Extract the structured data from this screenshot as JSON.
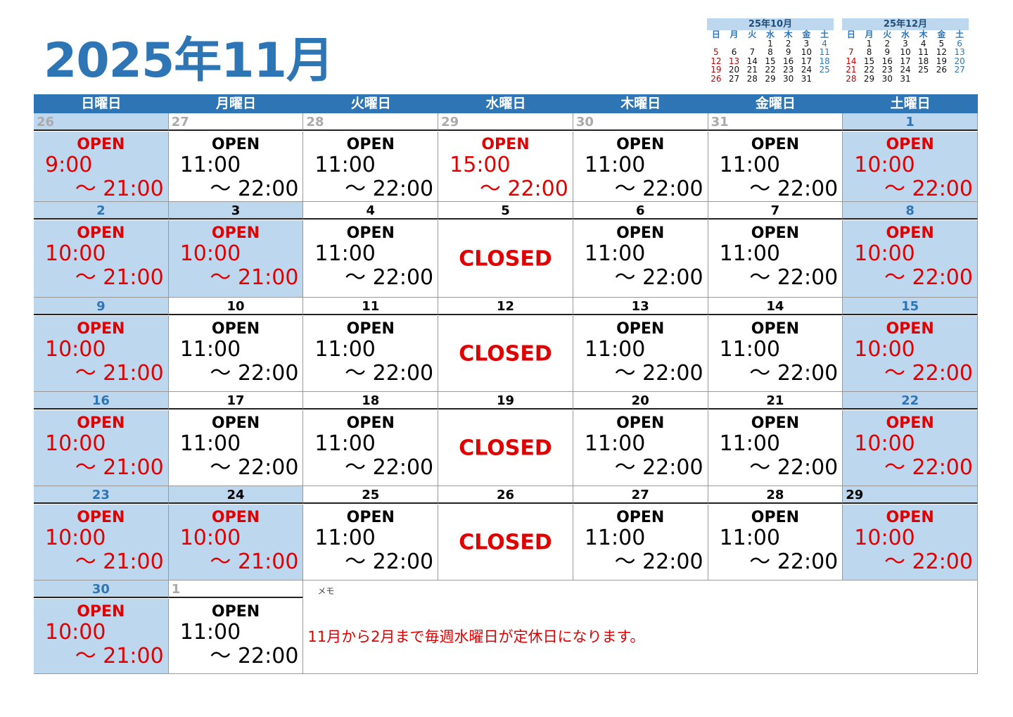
{
  "title": "2025年11月",
  "colors": {
    "accent": "#2e75b6",
    "light": "#bdd7ee",
    "red": "#e00000"
  },
  "mini_calendars": [
    {
      "title": "25年10月",
      "weekdays": [
        "日",
        "月",
        "火",
        "水",
        "木",
        "金",
        "土"
      ],
      "weeks": [
        [
          "",
          "",
          "",
          "1",
          "2",
          "3",
          "4"
        ],
        [
          "5",
          "6",
          "7",
          "8",
          "9",
          "10",
          "11"
        ],
        [
          "12",
          "13",
          "14",
          "15",
          "16",
          "17",
          "18"
        ],
        [
          "19",
          "20",
          "21",
          "22",
          "23",
          "24",
          "25"
        ],
        [
          "26",
          "27",
          "28",
          "29",
          "30",
          "31",
          ""
        ]
      ],
      "holidays": [
        "13"
      ]
    },
    {
      "title": "25年12月",
      "weekdays": [
        "日",
        "月",
        "火",
        "水",
        "木",
        "金",
        "土"
      ],
      "weeks": [
        [
          "",
          "1",
          "2",
          "3",
          "4",
          "5",
          "6"
        ],
        [
          "7",
          "8",
          "9",
          "10",
          "11",
          "12",
          "13"
        ],
        [
          "14",
          "15",
          "16",
          "17",
          "18",
          "19",
          "20"
        ],
        [
          "21",
          "22",
          "23",
          "24",
          "25",
          "26",
          "27"
        ],
        [
          "28",
          "29",
          "30",
          "31",
          "",
          "",
          ""
        ]
      ],
      "holidays": []
    }
  ],
  "weekdays": [
    "日曜日",
    "月曜日",
    "火曜日",
    "水曜日",
    "木曜日",
    "金曜日",
    "土曜日"
  ],
  "weeks": [
    [
      {
        "date": "26",
        "kind": "other",
        "blue": true,
        "status": "OPEN",
        "open": "9:00",
        "close": "～ 21:00",
        "red": true
      },
      {
        "date": "27",
        "kind": "other",
        "status": "OPEN",
        "open": "11:00",
        "close": "～ 22:00"
      },
      {
        "date": "28",
        "kind": "other",
        "status": "OPEN",
        "open": "11:00",
        "close": "～ 22:00"
      },
      {
        "date": "29",
        "kind": "other",
        "status": "OPEN",
        "open": "15:00",
        "close": "～ 22:00",
        "red": true
      },
      {
        "date": "30",
        "kind": "other",
        "status": "OPEN",
        "open": "11:00",
        "close": "～ 22:00"
      },
      {
        "date": "31",
        "kind": "other",
        "status": "OPEN",
        "open": "11:00",
        "close": "～ 22:00"
      },
      {
        "date": "1",
        "kind": "sat",
        "blue": true,
        "status": "OPEN",
        "open": "10:00",
        "close": "～ 22:00",
        "red": true
      }
    ],
    [
      {
        "date": "2",
        "kind": "sun",
        "blue": true,
        "status": "OPEN",
        "open": "10:00",
        "close": "～ 21:00",
        "red": true
      },
      {
        "date": "3",
        "kind": "hol",
        "blue": true,
        "status": "OPEN",
        "open": "10:00",
        "close": "～ 21:00",
        "red": true
      },
      {
        "date": "4",
        "kind": "wk",
        "status": "OPEN",
        "open": "11:00",
        "close": "～ 22:00"
      },
      {
        "date": "5",
        "kind": "wk",
        "status": "CLOSED"
      },
      {
        "date": "6",
        "kind": "wk",
        "status": "OPEN",
        "open": "11:00",
        "close": "～ 22:00"
      },
      {
        "date": "7",
        "kind": "wk",
        "status": "OPEN",
        "open": "11:00",
        "close": "～ 22:00"
      },
      {
        "date": "8",
        "kind": "sat",
        "blue": true,
        "status": "OPEN",
        "open": "10:00",
        "close": "～ 22:00",
        "red": true
      }
    ],
    [
      {
        "date": "9",
        "kind": "sun",
        "blue": true,
        "status": "OPEN",
        "open": "10:00",
        "close": "～ 21:00",
        "red": true
      },
      {
        "date": "10",
        "kind": "wk",
        "status": "OPEN",
        "open": "11:00",
        "close": "～ 22:00"
      },
      {
        "date": "11",
        "kind": "wk",
        "status": "OPEN",
        "open": "11:00",
        "close": "～ 22:00"
      },
      {
        "date": "12",
        "kind": "wk",
        "status": "CLOSED"
      },
      {
        "date": "13",
        "kind": "wk",
        "status": "OPEN",
        "open": "11:00",
        "close": "～ 22:00"
      },
      {
        "date": "14",
        "kind": "wk",
        "status": "OPEN",
        "open": "11:00",
        "close": "～ 22:00"
      },
      {
        "date": "15",
        "kind": "sat",
        "blue": true,
        "status": "OPEN",
        "open": "10:00",
        "close": "～ 22:00",
        "red": true
      }
    ],
    [
      {
        "date": "16",
        "kind": "sun",
        "blue": true,
        "status": "OPEN",
        "open": "10:00",
        "close": "～ 21:00",
        "red": true
      },
      {
        "date": "17",
        "kind": "wk",
        "status": "OPEN",
        "open": "11:00",
        "close": "～ 22:00"
      },
      {
        "date": "18",
        "kind": "wk",
        "status": "OPEN",
        "open": "11:00",
        "close": "～ 22:00"
      },
      {
        "date": "19",
        "kind": "wk",
        "status": "CLOSED"
      },
      {
        "date": "20",
        "kind": "wk",
        "status": "OPEN",
        "open": "11:00",
        "close": "～ 22:00"
      },
      {
        "date": "21",
        "kind": "wk",
        "status": "OPEN",
        "open": "11:00",
        "close": "～ 22:00"
      },
      {
        "date": "22",
        "kind": "sat",
        "blue": true,
        "status": "OPEN",
        "open": "10:00",
        "close": "～ 22:00",
        "red": true
      }
    ],
    [
      {
        "date": "23",
        "kind": "sun",
        "blue": true,
        "status": "OPEN",
        "open": "10:00",
        "close": "～ 21:00",
        "red": true
      },
      {
        "date": "24",
        "kind": "hol",
        "blue": true,
        "status": "OPEN",
        "open": "10:00",
        "close": "～ 21:00",
        "red": true
      },
      {
        "date": "25",
        "kind": "wk",
        "status": "OPEN",
        "open": "11:00",
        "close": "～ 22:00"
      },
      {
        "date": "26",
        "kind": "wk",
        "status": "CLOSED"
      },
      {
        "date": "27",
        "kind": "wk",
        "status": "OPEN",
        "open": "11:00",
        "close": "～ 22:00"
      },
      {
        "date": "28",
        "kind": "wk",
        "status": "OPEN",
        "open": "11:00",
        "close": "～ 22:00"
      },
      {
        "date": "29",
        "kind": "sat29",
        "blue": true,
        "status": "OPEN",
        "open": "10:00",
        "close": "～ 22:00",
        "red": true
      }
    ],
    [
      {
        "date": "30",
        "kind": "sun",
        "blue": true,
        "status": "OPEN",
        "open": "10:00",
        "close": "～ 21:00",
        "red": true
      },
      {
        "date": "1",
        "kind": "other",
        "status": "OPEN",
        "open": "11:00",
        "close": "～ 22:00"
      }
    ]
  ],
  "memo": {
    "label": "メモ",
    "text": "11月から2月まで毎週水曜日が定休日になります。"
  }
}
